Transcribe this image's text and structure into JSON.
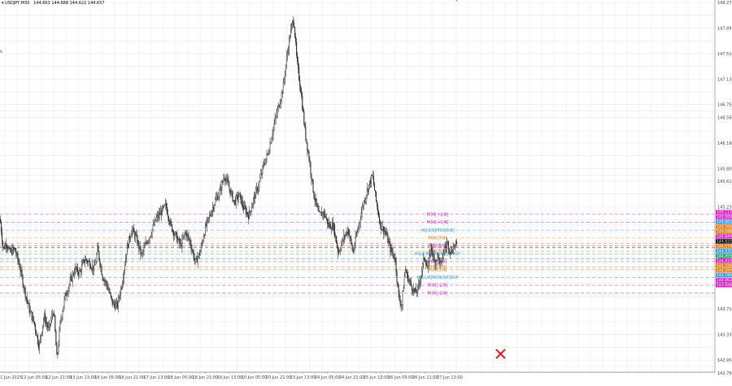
{
  "header": {
    "symbol_label": "USDJPY,M30",
    "prices": "144.663  144.688  144.622  144.657"
  },
  "colors": {
    "grid": "#dfe6ee",
    "axis_text": "#444444",
    "candles": "#222222",
    "m30_magenta": "#d81fbf",
    "m30_orange": "#e07b14",
    "h1_blue": "#3a97e0",
    "close_mark": "#e02020"
  },
  "chart_data": {
    "type": "candlestick",
    "symbol": "USDJPY",
    "timeframe": "M30",
    "ylim": [
      142.77,
      148.27
    ],
    "y_ticks": [
      "148.270",
      "147.890",
      "147.510",
      "147.130",
      "146.750",
      "146.560",
      "146.180",
      "145.800",
      "145.610",
      "145.230",
      "144.850",
      "144.470",
      "144.090",
      "143.710",
      "143.330",
      "142.950",
      "142.760"
    ],
    "y_tick_values": [
      148.27,
      147.89,
      147.51,
      147.13,
      146.75,
      146.56,
      146.18,
      145.8,
      145.61,
      145.23,
      144.85,
      144.47,
      144.09,
      143.71,
      143.33,
      142.95,
      142.76
    ],
    "x_ticks": [
      "11 Jun 2025",
      "12 Jun 05:00",
      "12 Jun 21:00",
      "13 Jun 13:00",
      "16 Jun 05:00",
      "16 Jun 21:00",
      "17 Jun 13:00",
      "18 Jun 05:00",
      "18 Jun 21:00",
      "19 Jun 13:00",
      "20 Jun 05:00",
      "20 Jun 21:00",
      "23 Jun 13:00",
      "24 Jun 05:00",
      "24 Jun 21:00",
      "25 Jun 13:00",
      "26 Jun 05:00",
      "26 Jun 21:00",
      "27 Jun 13:00"
    ],
    "price_path": [
      [
        0,
        145.05
      ],
      [
        4,
        144.6
      ],
      [
        8,
        144.7
      ],
      [
        12,
        144.55
      ],
      [
        18,
        144.6
      ],
      [
        24,
        144.35
      ],
      [
        30,
        144.0
      ],
      [
        36,
        143.7
      ],
      [
        42,
        143.5
      ],
      [
        48,
        143.15
      ],
      [
        54,
        143.6
      ],
      [
        60,
        143.4
      ],
      [
        66,
        143.7
      ],
      [
        70,
        142.95
      ],
      [
        74,
        143.5
      ],
      [
        80,
        143.9
      ],
      [
        86,
        144.1
      ],
      [
        92,
        144.3
      ],
      [
        98,
        144.25
      ],
      [
        104,
        144.45
      ],
      [
        110,
        144.4
      ],
      [
        116,
        144.3
      ],
      [
        120,
        144.6
      ],
      [
        126,
        144.2
      ],
      [
        132,
        144.05
      ],
      [
        138,
        143.8
      ],
      [
        144,
        143.75
      ],
      [
        150,
        144.1
      ],
      [
        156,
        144.6
      ],
      [
        162,
        144.9
      ],
      [
        168,
        144.75
      ],
      [
        174,
        144.5
      ],
      [
        180,
        144.7
      ],
      [
        186,
        144.85
      ],
      [
        192,
        145.05
      ],
      [
        198,
        145.15
      ],
      [
        204,
        145.25
      ],
      [
        210,
        144.95
      ],
      [
        216,
        144.8
      ],
      [
        222,
        144.65
      ],
      [
        228,
        144.85
      ],
      [
        234,
        144.7
      ],
      [
        240,
        144.4
      ],
      [
        246,
        144.55
      ],
      [
        252,
        144.9
      ],
      [
        258,
        145.1
      ],
      [
        264,
        145.3
      ],
      [
        270,
        145.45
      ],
      [
        276,
        145.7
      ],
      [
        282,
        145.5
      ],
      [
        288,
        145.3
      ],
      [
        294,
        145.4
      ],
      [
        300,
        145.2
      ],
      [
        306,
        145.1
      ],
      [
        312,
        145.35
      ],
      [
        318,
        145.55
      ],
      [
        324,
        145.85
      ],
      [
        330,
        146.05
      ],
      [
        336,
        146.4
      ],
      [
        342,
        146.7
      ],
      [
        348,
        147.0
      ],
      [
        352,
        147.4
      ],
      [
        356,
        147.75
      ],
      [
        361,
        148.05
      ],
      [
        365,
        147.4
      ],
      [
        370,
        146.95
      ],
      [
        375,
        146.35
      ],
      [
        380,
        145.95
      ],
      [
        386,
        145.4
      ],
      [
        392,
        145.1
      ],
      [
        398,
        145.15
      ],
      [
        404,
        144.95
      ],
      [
        410,
        144.95
      ],
      [
        416,
        144.55
      ],
      [
        422,
        144.75
      ],
      [
        428,
        144.9
      ],
      [
        434,
        144.55
      ],
      [
        440,
        144.9
      ],
      [
        446,
        145.25
      ],
      [
        452,
        145.5
      ],
      [
        458,
        145.7
      ],
      [
        462,
        145.35
      ],
      [
        468,
        144.95
      ],
      [
        474,
        144.85
      ],
      [
        480,
        144.6
      ],
      [
        486,
        144.45
      ],
      [
        490,
        143.9
      ],
      [
        494,
        143.75
      ],
      [
        498,
        144.3
      ],
      [
        502,
        144.15
      ],
      [
        506,
        144.05
      ],
      [
        510,
        143.95
      ],
      [
        514,
        144.0
      ],
      [
        518,
        144.25
      ],
      [
        522,
        144.5
      ],
      [
        526,
        144.3
      ],
      [
        530,
        144.65
      ],
      [
        534,
        144.4
      ],
      [
        538,
        144.5
      ],
      [
        542,
        144.35
      ],
      [
        546,
        144.6
      ],
      [
        550,
        144.7
      ],
      [
        554,
        144.55
      ],
      [
        558,
        144.65
      ],
      [
        562,
        144.66
      ]
    ],
    "levels": [
      {
        "label": "M30[+2/8]",
        "price_tag": "145.117",
        "value": 145.117,
        "color": "#d81fbf"
      },
      {
        "label": "M30[+1/8]",
        "price_tag": "145.000",
        "value": 145.0,
        "color": "#d81fbf"
      },
      {
        "label": "H1[3/8]M30[8/8]",
        "price_tag": "144.883",
        "value": 144.883,
        "color": "#3a97e0"
      },
      {
        "label": "M30[7/8]",
        "price_tag": "144.766",
        "value": 144.766,
        "color": "#e07b14"
      },
      {
        "label": "",
        "price_tag": "144.688",
        "value": 144.688,
        "color": "#e07b14"
      },
      {
        "label": "M30[6/8]",
        "price_tag": "144.649",
        "value": 144.649,
        "color": "#d81fbf"
      },
      {
        "label": "",
        "price_tag": "144.622",
        "value": 144.622,
        "color": "#000000"
      },
      {
        "label": "M30[5/8]",
        "price_tag": "144.570",
        "value": 144.57,
        "color": "#e07b14"
      },
      {
        "label": "H1[2/8]M30[4/8]PIVOT",
        "price_tag": "144.531",
        "value": 144.531,
        "color": "#3a97e0"
      },
      {
        "label": "",
        "price_tag": "144.459",
        "value": 144.459,
        "color": "#1fa36f"
      },
      {
        "label": "M30[3/8]",
        "price_tag": "144.415",
        "value": 144.415,
        "color": "#d81fbf"
      },
      {
        "label": "M30[2/8]",
        "price_tag": "144.336",
        "value": 144.336,
        "color": "#e07b14"
      },
      {
        "label": "M30[1/8]",
        "price_tag": "144.297",
        "value": 144.297,
        "color": "#e07b14"
      },
      {
        "label": "H1[1/8]M30[0/8]SUP",
        "price_tag": "144.180",
        "value": 144.18,
        "color": "#3a97e0"
      },
      {
        "label": "M30[-1/8]",
        "price_tag": "144.063",
        "value": 144.063,
        "color": "#d81fbf"
      },
      {
        "label": "M30[-2/8]",
        "price_tag": "143.946",
        "value": 143.946,
        "color": "#d81fbf"
      }
    ]
  }
}
